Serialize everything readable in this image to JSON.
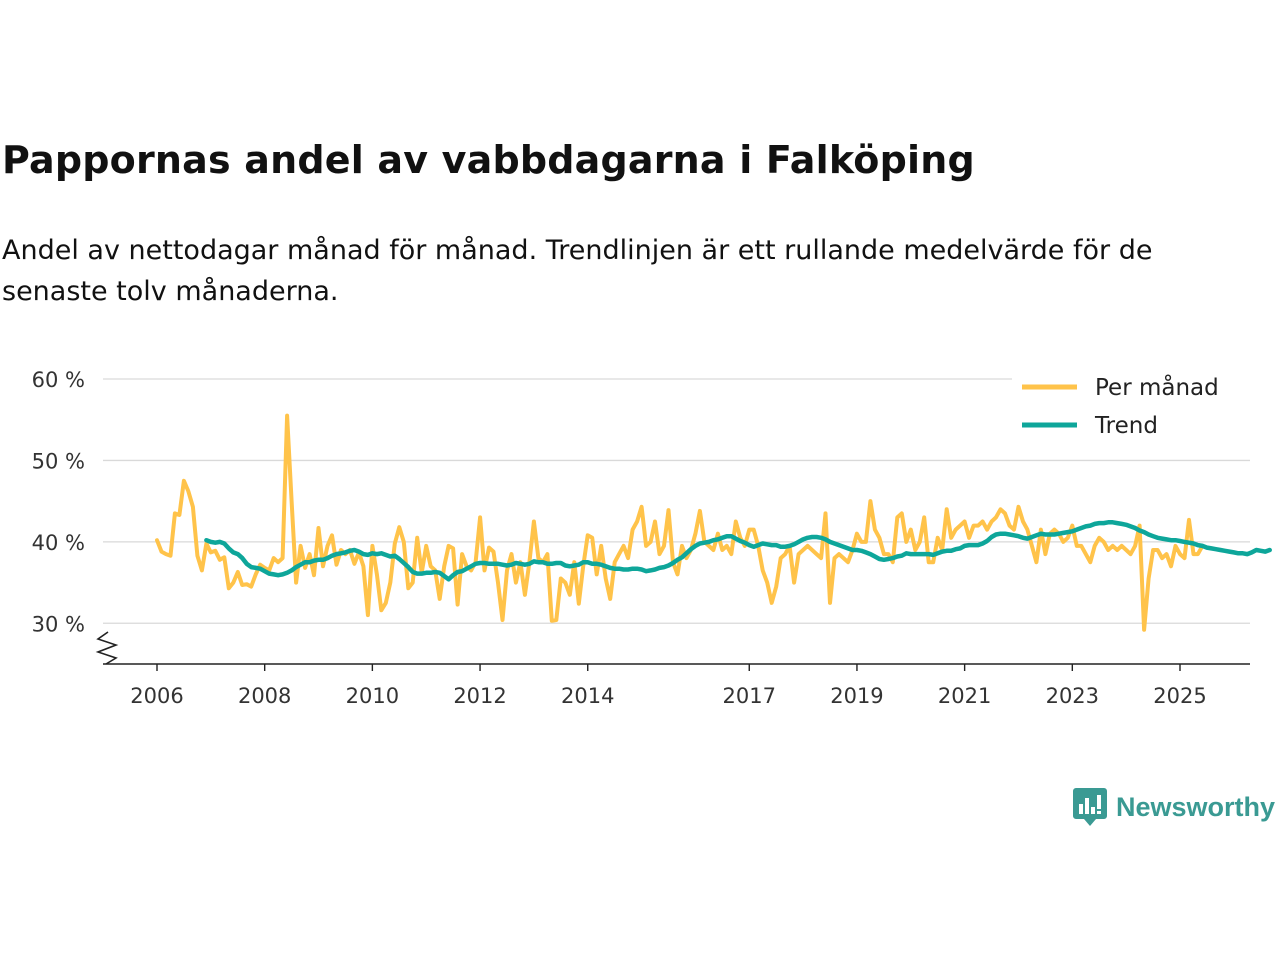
{
  "title": "Pappornas andel av vabbdagarna i Falköping",
  "subtitle": "Andel av nettodagar månad för månad. Trendlinjen är ett rullande medelvärde för de senaste tolv månaderna.",
  "brand": {
    "name": "Newsworthy",
    "color": "#3a9a93",
    "icon": "newsworthy-logo-icon"
  },
  "colors": {
    "monthly": "#ffc34a",
    "trend": "#0ea69a",
    "grid": "#d9d9d9",
    "axis": "#222222"
  },
  "chart_data": {
    "type": "line",
    "title": "Pappornas andel av vabbdagarna i Falköping",
    "xlabel": "",
    "ylabel": "",
    "ylim": [
      25,
      60
    ],
    "xlim": [
      2006.0,
      2026.3
    ],
    "y_ticks": [
      30,
      40,
      50,
      60
    ],
    "y_tick_labels": [
      "30 %",
      "40 %",
      "50 %",
      "60 %"
    ],
    "y_axis_break": true,
    "x_ticks": [
      2006,
      2008,
      2010,
      2012,
      2014,
      2017,
      2019,
      2021,
      2023,
      2025
    ],
    "x_tick_labels": [
      "2006",
      "2008",
      "2010",
      "2012",
      "2014",
      "2017",
      "2019",
      "2021",
      "2023",
      "2025"
    ],
    "grid": true,
    "legend": {
      "position": "top-right",
      "entries": [
        "Per månad",
        "Trend"
      ]
    },
    "series": [
      {
        "name": "Per månad",
        "start": 2006.0,
        "step": 0.0833333,
        "values": [
          40.2,
          38.8,
          38.5,
          38.3,
          43.5,
          43.3,
          47.5,
          46.2,
          44.3,
          38.3,
          36.5,
          39.8,
          38.7,
          38.9,
          37.8,
          38.1,
          34.3,
          35.0,
          36.3,
          34.7,
          34.8,
          34.5,
          36.0,
          37.2,
          36.8,
          36.5,
          38.0,
          37.5,
          38.0,
          55.5,
          45.0,
          35.0,
          39.5,
          36.8,
          38.5,
          35.9,
          41.7,
          37.0,
          39.5,
          40.8,
          37.2,
          39.0,
          38.5,
          39.0,
          37.3,
          38.7,
          37.0,
          31.0,
          39.5,
          36.0,
          31.6,
          32.5,
          35.0,
          39.8,
          41.8,
          40.0,
          34.3,
          35.0,
          40.5,
          36.2,
          39.5,
          37.0,
          36.5,
          33.0,
          37.0,
          39.5,
          39.2,
          32.3,
          38.5,
          37.0,
          36.5,
          37.5,
          43.0,
          36.5,
          39.3,
          38.8,
          35.0,
          30.4,
          36.5,
          38.5,
          35.0,
          37.5,
          33.5,
          37.5,
          42.5,
          38.0,
          37.5,
          38.5,
          30.3,
          30.4,
          35.5,
          35.0,
          33.5,
          37.5,
          32.4,
          37.0,
          40.8,
          40.5,
          36.0,
          39.5,
          35.5,
          33.0,
          37.5,
          38.5,
          39.5,
          38.0,
          41.5,
          42.5,
          44.3,
          39.5,
          40.0,
          42.5,
          38.5,
          39.5,
          43.9,
          37.5,
          36.0,
          39.5,
          38.0,
          39.0,
          41.0,
          43.8,
          40.0,
          39.5,
          39.0,
          41.0,
          39.0,
          39.5,
          38.5,
          42.5,
          40.5,
          39.5,
          41.5,
          41.5,
          39.5,
          36.5,
          35.0,
          32.5,
          34.5,
          38.0,
          38.5,
          39.5,
          35.0,
          38.5,
          39.0,
          39.5,
          39.0,
          38.5,
          38.0,
          43.5,
          32.5,
          38.0,
          38.5,
          38.0,
          37.5,
          39.0,
          41.0,
          40.0,
          40.0,
          45.0,
          41.5,
          40.5,
          38.5,
          38.5,
          37.5,
          43.0,
          43.5,
          40.0,
          41.5,
          39.0,
          40.0,
          43.0,
          37.5,
          37.5,
          40.5,
          39.0,
          44.0,
          40.5,
          41.5,
          42.0,
          42.5,
          40.5,
          42.0,
          42.0,
          42.5,
          41.5,
          42.5,
          43.0,
          44.0,
          43.5,
          42.0,
          41.5,
          44.3,
          42.5,
          41.5,
          39.5,
          37.5,
          41.5,
          38.5,
          41.0,
          41.5,
          41.0,
          40.0,
          40.5,
          42.0,
          39.5,
          39.5,
          38.5,
          37.5,
          39.5,
          40.5,
          40.0,
          39.0,
          39.5,
          39.0,
          39.5,
          39.0,
          38.5,
          39.5,
          42.0,
          29.2,
          35.5,
          39.0,
          39.0,
          38.0,
          38.5,
          37.0,
          39.5,
          38.5,
          38.0,
          42.7,
          38.5,
          38.5,
          39.5
        ]
      },
      {
        "name": "Trend",
        "start": 2006.9167,
        "step": 0.0833333,
        "values": [
          40.2,
          40.0,
          39.9,
          40.0,
          39.8,
          39.2,
          38.7,
          38.5,
          38.0,
          37.3,
          36.9,
          36.8,
          36.7,
          36.4,
          36.1,
          36.0,
          35.9,
          36.0,
          36.2,
          36.5,
          36.9,
          37.2,
          37.5,
          37.5,
          37.7,
          37.8,
          37.8,
          38.0,
          38.3,
          38.5,
          38.6,
          38.7,
          38.9,
          39.0,
          38.8,
          38.5,
          38.4,
          38.6,
          38.5,
          38.6,
          38.4,
          38.2,
          38.3,
          37.9,
          37.4,
          36.9,
          36.3,
          36.1,
          36.1,
          36.2,
          36.2,
          36.3,
          36.2,
          35.8,
          35.4,
          35.9,
          36.3,
          36.4,
          36.7,
          37.0,
          37.3,
          37.4,
          37.4,
          37.3,
          37.3,
          37.3,
          37.2,
          37.1,
          37.2,
          37.4,
          37.3,
          37.2,
          37.3,
          37.6,
          37.5,
          37.5,
          37.3,
          37.3,
          37.4,
          37.4,
          37.1,
          37.0,
          37.1,
          37.2,
          37.5,
          37.5,
          37.3,
          37.3,
          37.2,
          37.0,
          36.8,
          36.7,
          36.7,
          36.6,
          36.6,
          36.7,
          36.7,
          36.6,
          36.4,
          36.5,
          36.6,
          36.8,
          36.9,
          37.1,
          37.4,
          37.8,
          38.1,
          38.6,
          39.1,
          39.5,
          39.8,
          39.9,
          40.0,
          40.2,
          40.3,
          40.5,
          40.7,
          40.7,
          40.4,
          40.1,
          39.9,
          39.6,
          39.4,
          39.6,
          39.8,
          39.7,
          39.6,
          39.6,
          39.4,
          39.4,
          39.5,
          39.7,
          40.0,
          40.3,
          40.5,
          40.6,
          40.6,
          40.5,
          40.3,
          40.0,
          39.8,
          39.6,
          39.4,
          39.2,
          39.0,
          39.0,
          38.9,
          38.7,
          38.5,
          38.2,
          37.9,
          37.8,
          37.9,
          38.0,
          38.2,
          38.3,
          38.6,
          38.5,
          38.5,
          38.5,
          38.5,
          38.5,
          38.4,
          38.6,
          38.8,
          38.9,
          38.9,
          39.1,
          39.2,
          39.5,
          39.6,
          39.6,
          39.6,
          39.8,
          40.1,
          40.6,
          40.9,
          41.0,
          41.0,
          40.9,
          40.8,
          40.7,
          40.5,
          40.4,
          40.6,
          40.8,
          41.0,
          40.9,
          40.9,
          40.9,
          41.0,
          41.1,
          41.2,
          41.3,
          41.5,
          41.7,
          41.9,
          42.0,
          42.2,
          42.3,
          42.3,
          42.4,
          42.4,
          42.3,
          42.2,
          42.1,
          41.9,
          41.7,
          41.4,
          41.2,
          40.9,
          40.7,
          40.5,
          40.4,
          40.3,
          40.2,
          40.2,
          40.1,
          40.0,
          39.9,
          39.8,
          39.6,
          39.5,
          39.3,
          39.2,
          39.1,
          39.0,
          38.9,
          38.8,
          38.7,
          38.6,
          38.6,
          38.5,
          38.7,
          39.0,
          38.9,
          38.8,
          39.0
        ]
      }
    ]
  }
}
